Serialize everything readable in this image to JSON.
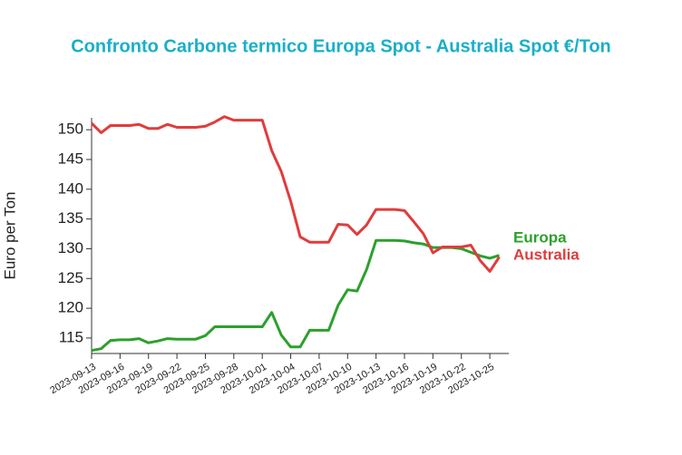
{
  "chart_data": {
    "type": "line",
    "title": "Confronto Carbone termico Europa Spot - Australia Spot €/Ton",
    "ylabel": "Euro per Ton",
    "x": [
      "2023-09-13",
      "2023-09-14",
      "2023-09-15",
      "2023-09-16",
      "2023-09-17",
      "2023-09-18",
      "2023-09-19",
      "2023-09-20",
      "2023-09-21",
      "2023-09-22",
      "2023-09-23",
      "2023-09-24",
      "2023-09-25",
      "2023-09-26",
      "2023-09-27",
      "2023-09-28",
      "2023-09-29",
      "2023-09-30",
      "2023-10-01",
      "2023-10-02",
      "2023-10-03",
      "2023-10-04",
      "2023-10-05",
      "2023-10-06",
      "2023-10-07",
      "2023-10-08",
      "2023-10-09",
      "2023-10-10",
      "2023-10-11",
      "2023-10-12",
      "2023-10-13",
      "2023-10-14",
      "2023-10-15",
      "2023-10-16",
      "2023-10-17",
      "2023-10-18",
      "2023-10-19",
      "2023-10-20",
      "2023-10-21",
      "2023-10-22",
      "2023-10-23",
      "2023-10-24",
      "2023-10-25",
      "2023-10-26"
    ],
    "series": [
      {
        "name": "Europa",
        "color": "#2ca02c",
        "values": [
          112.9,
          113.2,
          114.6,
          114.7,
          114.7,
          114.9,
          114.2,
          114.5,
          114.9,
          114.8,
          114.8,
          114.8,
          115.4,
          116.9,
          116.9,
          116.9,
          116.9,
          116.9,
          116.9,
          119.3,
          115.5,
          113.5,
          113.5,
          116.3,
          116.3,
          116.3,
          120.5,
          123.1,
          122.9,
          126.5,
          131.4,
          131.4,
          131.4,
          131.3,
          131.0,
          130.8,
          130.2,
          130.2,
          130.2,
          130.0,
          129.4,
          128.8,
          128.4,
          128.9
        ]
      },
      {
        "name": "Australia",
        "color": "#e03c3c",
        "values": [
          151.1,
          149.5,
          150.7,
          150.7,
          150.7,
          150.9,
          150.2,
          150.2,
          150.9,
          150.4,
          150.4,
          150.4,
          150.6,
          151.3,
          152.2,
          151.6,
          151.6,
          151.6,
          151.6,
          146.5,
          143.0,
          138.0,
          132.0,
          131.1,
          131.1,
          131.1,
          134.1,
          134.0,
          132.4,
          134.0,
          136.6,
          136.6,
          136.6,
          136.4,
          134.5,
          132.5,
          129.3,
          130.3,
          130.3,
          130.3,
          130.6,
          128.0,
          126.2,
          128.6
        ]
      }
    ],
    "xlim": [
      "2023-09-13",
      "2023-10-27"
    ],
    "xticks": [
      "2023-09-13",
      "2023-09-16",
      "2023-09-19",
      "2023-09-22",
      "2023-09-25",
      "2023-09-28",
      "2023-10-01",
      "2023-10-04",
      "2023-10-07",
      "2023-10-10",
      "2023-10-13",
      "2023-10-16",
      "2023-10-19",
      "2023-10-22",
      "2023-10-25"
    ],
    "ylim": [
      112.4,
      152
    ],
    "yticks": [
      115,
      120,
      125,
      130,
      135,
      140,
      145,
      150
    ]
  }
}
